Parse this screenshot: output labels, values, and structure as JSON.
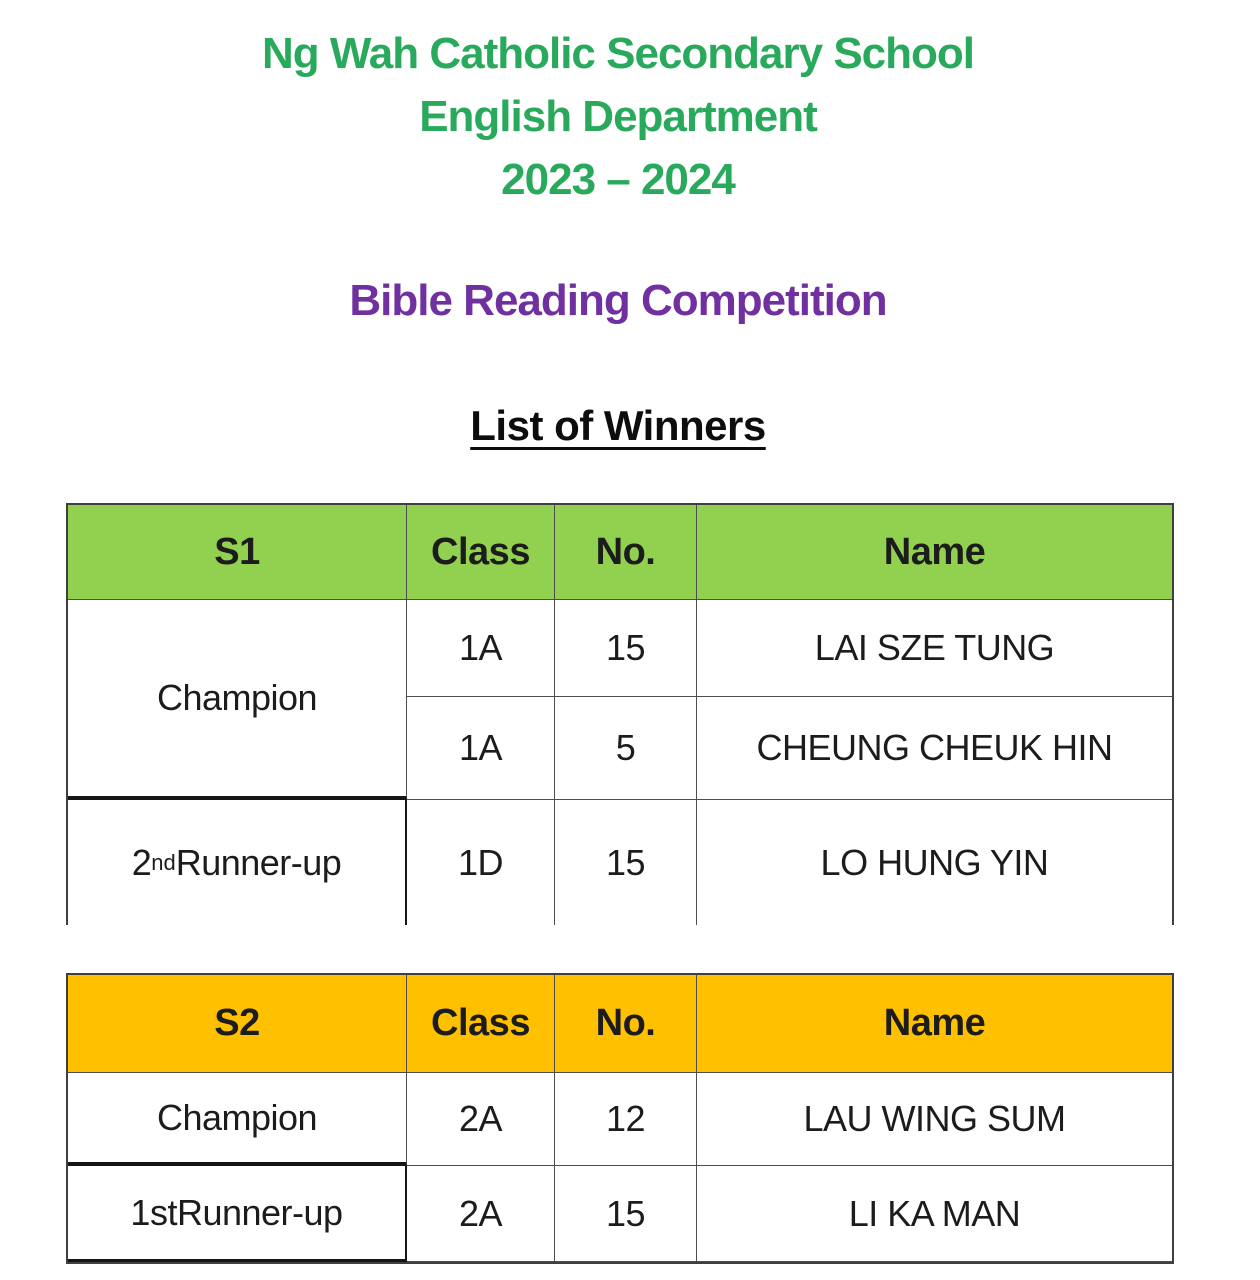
{
  "colors": {
    "school_title_green": "#29a95c",
    "event_title_purple": "#7030A0",
    "s1_header_bg": "#92D050",
    "s2_header_bg": "#FFC000",
    "grid_line": "#4d4d4d",
    "thick_line": "#161616"
  },
  "header": {
    "school_name": "Ng Wah Catholic Secondary School",
    "department": "English Department",
    "year": "2023 – 2024",
    "event_title": "Bible Reading Competition",
    "list_title": "List of Winners"
  },
  "tables": [
    {
      "level": "S1",
      "columns": {
        "level": "S1",
        "class": "Class",
        "no": "No.",
        "name": "Name"
      },
      "champion_rank": {
        "base": "Champion",
        "sup": "",
        "rest": ""
      },
      "champion_rows": [
        {
          "class": "1A",
          "no": "15",
          "name": "LAI SZE TUNG"
        },
        {
          "class": "1A",
          "no": "5",
          "name": "CHEUNG CHEUK HIN"
        }
      ],
      "runner_row": {
        "rank": {
          "base": "2",
          "sup": "nd",
          "rest": " Runner-up"
        },
        "class": "1D",
        "no": "15",
        "name": "LO HUNG YIN"
      }
    },
    {
      "level": "S2",
      "columns": {
        "level": "S2",
        "class": "Class",
        "no": "No.",
        "name": "Name"
      },
      "champion_row": {
        "rank": {
          "base": "Champion",
          "sup": "",
          "rest": ""
        },
        "class": "2A",
        "no": "12",
        "name": "LAU WING SUM"
      },
      "runner_row": {
        "rank": {
          "base": "1st",
          "sup": "",
          "rest": " Runner-up"
        },
        "class": "2A",
        "no": "15",
        "name": "LI KA MAN"
      }
    }
  ]
}
